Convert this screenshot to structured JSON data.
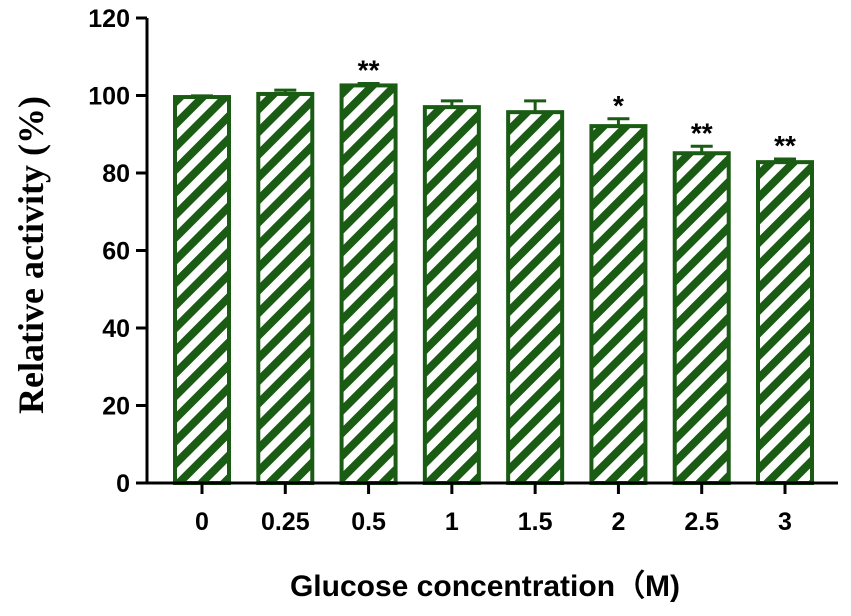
{
  "chart_data": {
    "type": "bar",
    "xlabel": "Glucose concentration（M)",
    "ylabel": "Relative activity (%)",
    "ylim": [
      0,
      120
    ],
    "yticks": [
      "0",
      "20",
      "40",
      "60",
      "80",
      "100",
      "120"
    ],
    "categories": [
      "0",
      "0.25",
      "0.5",
      "1",
      "1.5",
      "2",
      "2.5",
      "3"
    ],
    "values": [
      99.6,
      100.4,
      102.6,
      97.0,
      95.7,
      92.1,
      85.1,
      82.8
    ],
    "errors": [
      0.3,
      1.0,
      0.5,
      1.6,
      2.9,
      1.9,
      1.8,
      0.8
    ],
    "significance": [
      "",
      "",
      "**",
      "",
      "",
      "*",
      "**",
      "**"
    ],
    "grid": false,
    "legend": "none",
    "bar_color": "#1a5c14",
    "hatch": "diagonal"
  }
}
